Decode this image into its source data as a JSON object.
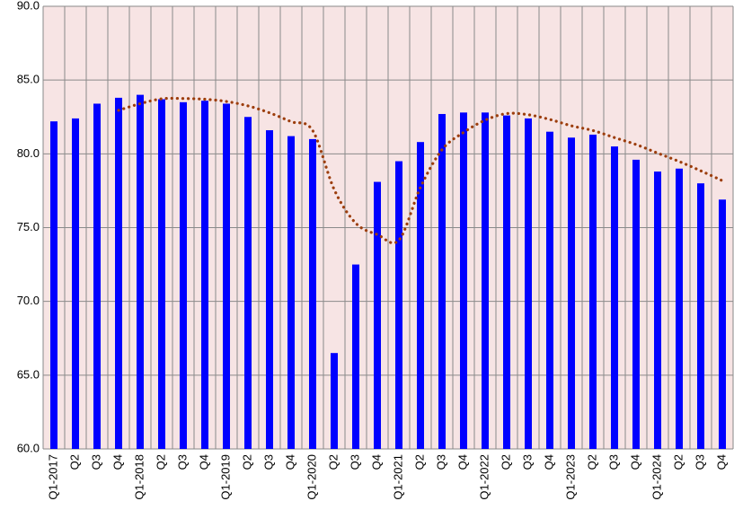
{
  "chart_data": {
    "type": "bar",
    "categories": [
      "Q1-2017",
      "Q2",
      "Q3",
      "Q4",
      "Q1-2018",
      "Q2",
      "Q3",
      "Q4",
      "Q1-2019",
      "Q2",
      "Q3",
      "Q4",
      "Q1-2020",
      "Q2",
      "Q3",
      "Q4",
      "Q1-2021",
      "Q2",
      "Q3",
      "Q4",
      "Q1-2022",
      "Q2",
      "Q3",
      "Q4",
      "Q1-2023",
      "Q2",
      "Q3",
      "Q4",
      "Q1-2024",
      "Q2",
      "Q3",
      "Q4"
    ],
    "series": [
      {
        "type": "bar",
        "color": "#0000ff",
        "values": [
          82.2,
          82.4,
          83.4,
          83.8,
          84.0,
          83.7,
          83.5,
          83.6,
          83.4,
          82.5,
          81.6,
          81.2,
          81.0,
          66.5,
          72.5,
          78.1,
          79.5,
          80.8,
          82.7,
          82.8,
          82.8,
          82.6,
          82.4,
          81.5,
          81.1,
          81.3,
          80.5,
          79.6,
          78.8,
          79.0,
          78.0,
          76.9
        ]
      },
      {
        "type": "line",
        "style": "dotted",
        "color": "#9c3d0c",
        "values": [
          null,
          null,
          null,
          82.95,
          83.4,
          83.73,
          83.75,
          83.7,
          83.55,
          83.25,
          82.78,
          82.18,
          81.58,
          77.58,
          75.3,
          74.53,
          74.15,
          77.73,
          80.28,
          81.45,
          82.28,
          82.73,
          82.65,
          82.33,
          81.9,
          81.58,
          81.1,
          80.63,
          80.05,
          79.48,
          78.85,
          78.18
        ]
      }
    ],
    "ylim": [
      60,
      90
    ],
    "yticks": [
      {
        "value": 60,
        "label": "60.0"
      },
      {
        "value": 65,
        "label": "65.0"
      },
      {
        "value": 70,
        "label": "70.0"
      },
      {
        "value": 75,
        "label": "75.0"
      },
      {
        "value": 80,
        "label": "80.0"
      },
      {
        "value": 85,
        "label": "85.0"
      },
      {
        "value": 90,
        "label": "90.0"
      }
    ],
    "grid": true
  }
}
